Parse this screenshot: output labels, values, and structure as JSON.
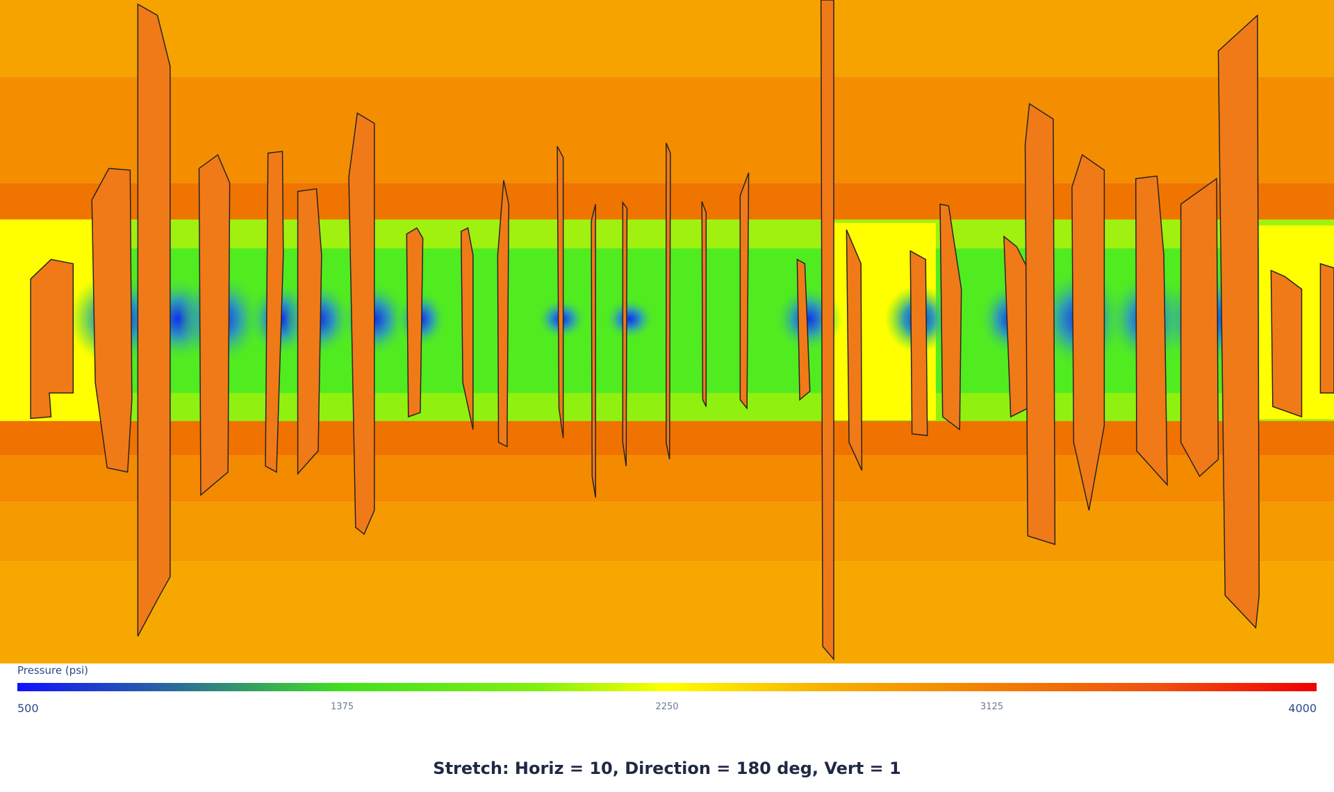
{
  "colorbar": {
    "label": "Pressure (psi)",
    "range": [
      500,
      4000
    ],
    "ticks": [
      500,
      1375,
      2250,
      3125,
      4000
    ]
  },
  "caption": "Stretch: Horiz = 10, Direction = 180 deg, Vert = 1"
}
